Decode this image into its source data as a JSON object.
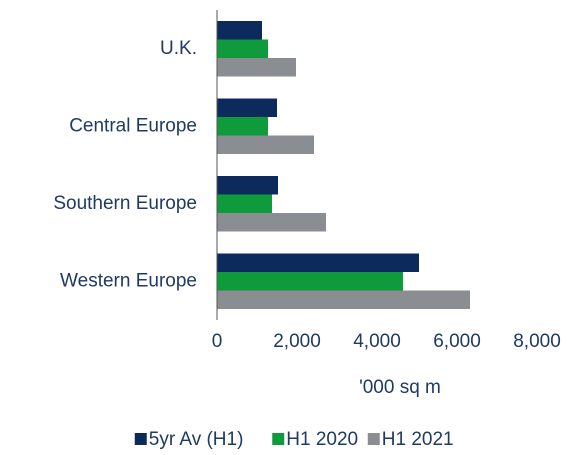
{
  "chart_data": {
    "type": "hbar",
    "categories": [
      "U.K.",
      "Central Europe",
      "Southern Europe",
      "Western Europe"
    ],
    "series": [
      {
        "name": "5yr Av (H1)",
        "color": "#0c2a5b",
        "values": [
          1125,
          1500,
          1525,
          5050
        ]
      },
      {
        "name": "H1 2020",
        "color": "#0f9a3c",
        "values": [
          1275,
          1275,
          1375,
          4650
        ]
      },
      {
        "name": "H1 2021",
        "color": "#8a8d91",
        "values": [
          1975,
          2425,
          2725,
          6325
        ]
      }
    ],
    "x_label": "'000 sq m",
    "xlim": [
      0,
      8000
    ],
    "xticks": [
      0,
      {
        "value": 2000,
        "label": "2,000"
      },
      {
        "value": 4000,
        "label": "4,000"
      },
      {
        "value": 6000,
        "label": "6,000"
      },
      {
        "value": 8000,
        "label": "8,000"
      }
    ],
    "grid": false,
    "legend": "bottom"
  }
}
